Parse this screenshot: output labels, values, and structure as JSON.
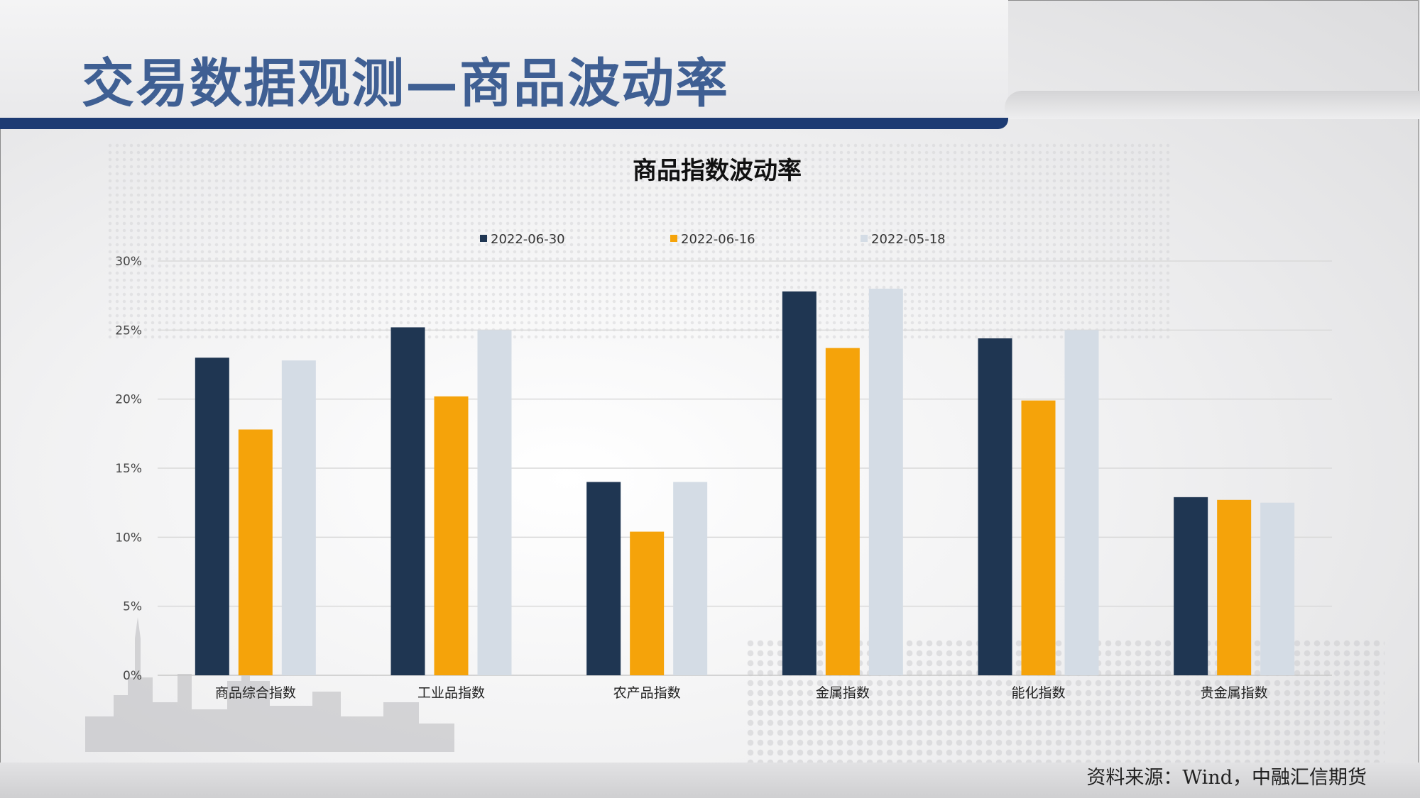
{
  "page": {
    "title": "交易数据观测—商品波动率",
    "source": "资料来源：Wind，中融汇信期货"
  },
  "colors": {
    "series": [
      "#1f3652",
      "#f5a30a",
      "#d4dce5"
    ],
    "title_blue": "#3f5f93",
    "band_navy": "#1d3b73"
  },
  "chart_data": {
    "type": "bar",
    "title": "商品指数波动率",
    "categories": [
      "商品综合指数",
      "工业品指数",
      "农产品指数",
      "金属指数",
      "能化指数",
      "贵金属指数"
    ],
    "series": [
      {
        "name": "2022-06-30",
        "values": [
          0.23,
          0.252,
          0.14,
          0.278,
          0.244,
          0.129
        ]
      },
      {
        "name": "2022-06-16",
        "values": [
          0.178,
          0.202,
          0.104,
          0.237,
          0.199,
          0.127
        ]
      },
      {
        "name": "2022-05-18",
        "values": [
          0.228,
          0.25,
          0.14,
          0.28,
          0.25,
          0.125
        ]
      }
    ],
    "y_ticks": [
      "0%",
      "5%",
      "10%",
      "15%",
      "20%",
      "25%",
      "30%"
    ],
    "ylim": [
      0,
      0.3
    ],
    "grid": true,
    "legend_position": "top"
  }
}
